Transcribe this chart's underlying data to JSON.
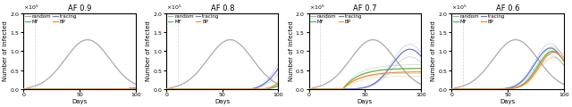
{
  "panels": [
    {
      "title": "AF 0.9",
      "af": 0.9
    },
    {
      "title": "AF 0.8",
      "af": 0.8
    },
    {
      "title": "AF 0.7",
      "af": 0.7
    },
    {
      "title": "AF 0.6",
      "af": 0.6
    }
  ],
  "colors": {
    "random": "#aaaaaa",
    "tracing": "#6677cc",
    "MF": "#44bb55",
    "BP": "#ff8833"
  },
  "xlim": [
    0,
    100
  ],
  "ylim": [
    0,
    200000
  ],
  "yticks": [
    0,
    50000,
    100000,
    150000,
    200000
  ],
  "xlabel": "Days",
  "ylabel": "Number of infected",
  "vline_day": 10
}
